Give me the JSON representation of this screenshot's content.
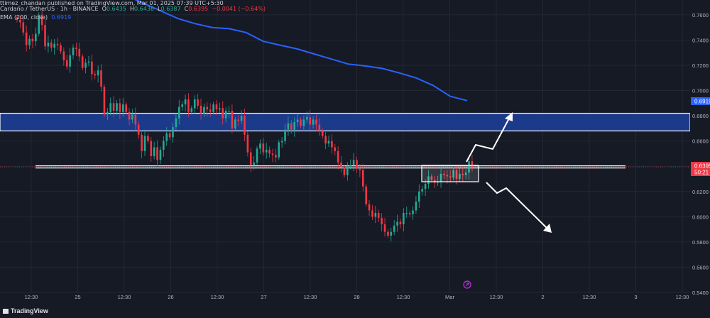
{
  "header": {
    "published": "ttimez_chandan published on TradingView.com, Mar 01, 2025 07:39 UTC+5:30",
    "symbol": "Cardano / TetherUS · 1h · BINANCE",
    "ohlc_o_label": "O",
    "ohlc_o": "0.6435",
    "ohlc_h_label": "H",
    "ohlc_h": "0.6436",
    "ohlc_l_label": "L",
    "ohlc_l": "0.6387",
    "ohlc_c_label": "C",
    "ohlc_c": "0.6395",
    "change": "−0.0041 (−0.64%)",
    "ema_label": "EMA (200, close)",
    "ema_value": "0.6919"
  },
  "footer": {
    "brand": "TradingView"
  },
  "colors": {
    "up": "#22ab94",
    "down": "#f23645",
    "ema": "#2962ff",
    "zone": "#1c3a8a",
    "background": "#161a25"
  },
  "chart_data": {
    "type": "candlestick",
    "ylim": [
      0.54,
      0.765
    ],
    "y_ticks": [
      "0.7600",
      "0.7400",
      "0.7200",
      "0.7000",
      "0.6800",
      "0.6600",
      "0.6400",
      "0.6200",
      "0.6000",
      "0.5800",
      "0.5600",
      "0.5400"
    ],
    "x_ticks": [
      "12:30",
      "25",
      "12:30",
      "26",
      "12:30",
      "27",
      "12:30",
      "28",
      "12:30",
      "Mar",
      "12:30",
      "2",
      "12:30",
      "3",
      "12:30"
    ],
    "price_label": "0.6395",
    "countdown_label": "50:21",
    "ema_label_value": "0.6919",
    "resistance_zone": [
      0.668,
      0.682
    ],
    "support_level": 0.6395,
    "closes": [
      0.756,
      0.754,
      0.746,
      0.736,
      0.741,
      0.739,
      0.745,
      0.76,
      0.752,
      0.735,
      0.738,
      0.734,
      0.737,
      0.736,
      0.731,
      0.724,
      0.719,
      0.728,
      0.734,
      0.733,
      0.727,
      0.718,
      0.722,
      0.723,
      0.713,
      0.712,
      0.716,
      0.703,
      0.681,
      0.683,
      0.69,
      0.684,
      0.69,
      0.683,
      0.689,
      0.683,
      0.677,
      0.681,
      0.673,
      0.665,
      0.652,
      0.664,
      0.66,
      0.648,
      0.655,
      0.645,
      0.653,
      0.66,
      0.666,
      0.663,
      0.671,
      0.678,
      0.687,
      0.689,
      0.693,
      0.683,
      0.686,
      0.693,
      0.688,
      0.682,
      0.687,
      0.685,
      0.683,
      0.689,
      0.685,
      0.686,
      0.678,
      0.684,
      0.684,
      0.67,
      0.677,
      0.676,
      0.68,
      0.665,
      0.651,
      0.641,
      0.643,
      0.654,
      0.658,
      0.651,
      0.653,
      0.65,
      0.649,
      0.647,
      0.659,
      0.66,
      0.669,
      0.674,
      0.669,
      0.675,
      0.677,
      0.672,
      0.677,
      0.679,
      0.673,
      0.677,
      0.673,
      0.668,
      0.664,
      0.658,
      0.66,
      0.655,
      0.652,
      0.643,
      0.639,
      0.633,
      0.64,
      0.641,
      0.645,
      0.638,
      0.637,
      0.624,
      0.61,
      0.605,
      0.6,
      0.603,
      0.599,
      0.594,
      0.588,
      0.585,
      0.588,
      0.593,
      0.596,
      0.594,
      0.603,
      0.603,
      0.602,
      0.605,
      0.612,
      0.62,
      0.622,
      0.626,
      0.632,
      0.629,
      0.627,
      0.628,
      0.634,
      0.633,
      0.632,
      0.631,
      0.637,
      0.63,
      0.634,
      0.633,
      0.635,
      0.644,
      0.6395
    ],
    "ema": [
      0.78,
      0.775,
      0.769,
      0.763,
      0.757,
      0.753,
      0.75,
      0.749,
      0.746,
      0.739,
      0.736,
      0.733,
      0.729,
      0.725,
      0.721,
      0.7195,
      0.7175,
      0.714,
      0.71,
      0.704,
      0.6955,
      0.692
    ]
  }
}
